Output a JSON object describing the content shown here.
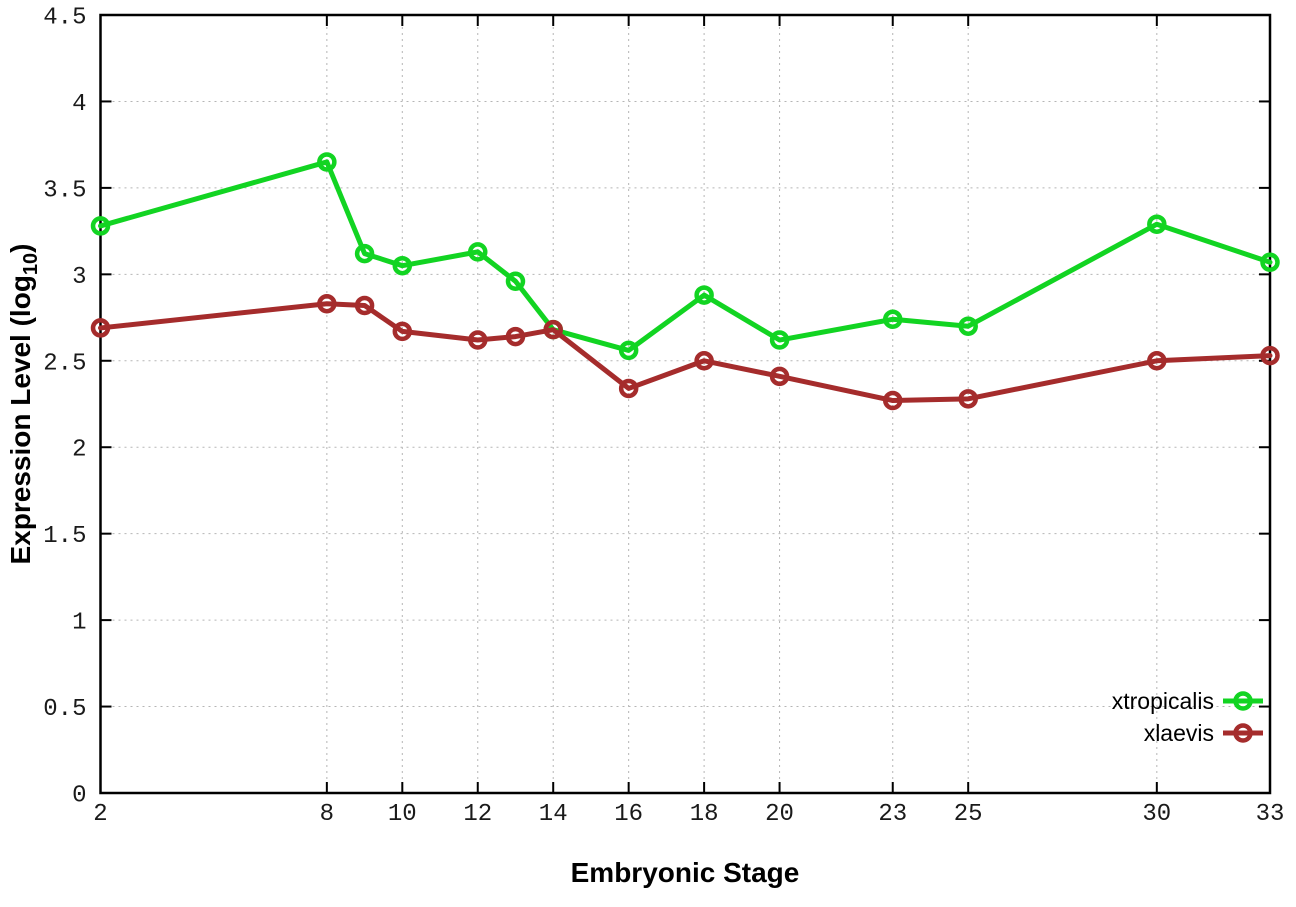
{
  "figure": {
    "background": "#ffffff",
    "border_color": "#000000",
    "grid_color": "#b5b5b5",
    "tick_label_color": "#1a1a1a"
  },
  "chart_data": {
    "type": "line",
    "title": "",
    "xlabel": "Embryonic Stage",
    "ylabel": "Expression Level (log10)",
    "ylabel_parts": {
      "pre": "Expression Level (log",
      "sub": "10",
      "post": ")"
    },
    "x": [
      2,
      8,
      9,
      10,
      12,
      13,
      14,
      16,
      18,
      20,
      23,
      25,
      30,
      33
    ],
    "series": [
      {
        "name": "xtropicalis",
        "color": "#12d422",
        "values": [
          3.28,
          3.65,
          3.12,
          3.05,
          3.13,
          2.96,
          2.68,
          2.56,
          2.88,
          2.62,
          2.74,
          2.7,
          3.29,
          3.07
        ]
      },
      {
        "name": "xlaevis",
        "color": "#a52c2c",
        "values": [
          2.69,
          2.83,
          2.82,
          2.67,
          2.62,
          2.64,
          2.68,
          2.34,
          2.5,
          2.41,
          2.27,
          2.28,
          2.5,
          2.53
        ]
      }
    ],
    "xlim": [
      2,
      33
    ],
    "ylim": [
      0,
      4.5
    ],
    "x_ticks": [
      2,
      8,
      10,
      12,
      14,
      16,
      18,
      20,
      23,
      25,
      30,
      33
    ],
    "x_tick_labels": [
      "2",
      "8",
      "10",
      "12",
      "14",
      "16",
      "18",
      "20",
      "23",
      "25",
      "30",
      "33"
    ],
    "y_ticks": [
      0,
      0.5,
      1,
      1.5,
      2,
      2.5,
      3,
      3.5,
      4,
      4.5
    ],
    "y_tick_labels": [
      "0",
      "0.5",
      "1",
      "1.5",
      "2",
      "2.5",
      "3",
      "3.5",
      "4",
      "4.5"
    ],
    "grid": true,
    "grid_style": "dotted",
    "legend_position": "bottom-right",
    "marker": "open-circle"
  }
}
